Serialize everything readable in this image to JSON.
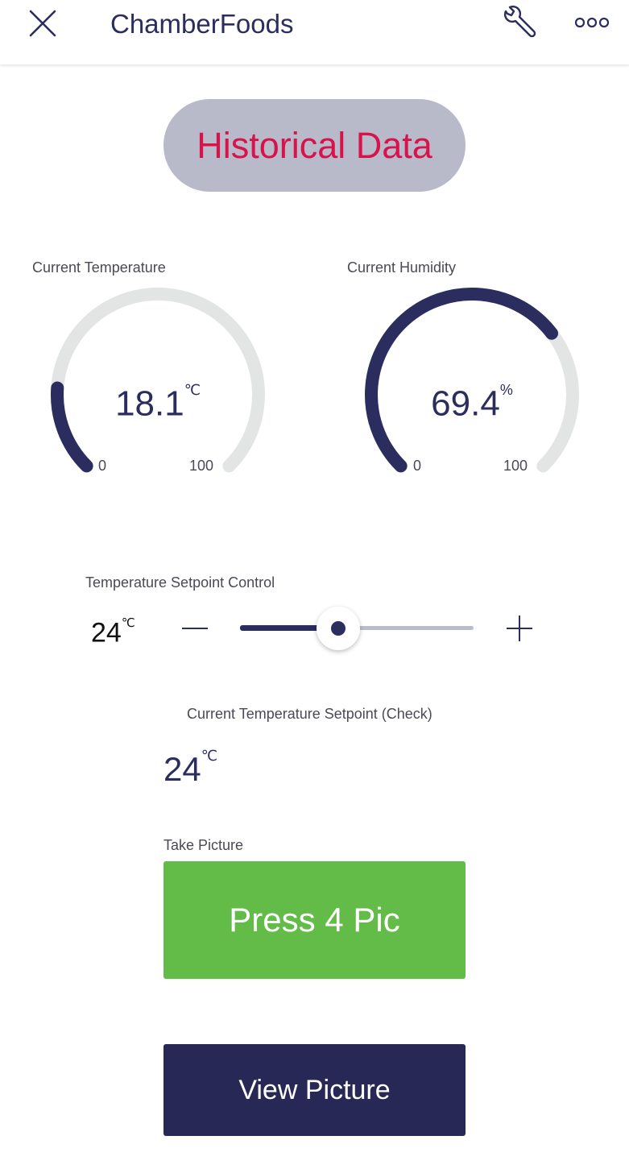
{
  "header": {
    "title": "ChamberFoods",
    "close_icon": "close-icon",
    "wrench_icon": "wrench-icon",
    "more_icon": "more-horizontal-icon"
  },
  "historical": {
    "label": "Historical Data"
  },
  "temperature": {
    "label": "Current Temperature",
    "value": "18.1",
    "unit": "℃",
    "min": "0",
    "max": "100",
    "fraction": 0.181
  },
  "humidity": {
    "label": "Current Humidity",
    "value": "69.4",
    "unit": "%",
    "min": "0",
    "max": "100",
    "fraction": 0.694
  },
  "setpoint": {
    "label": "Temperature Setpoint Control",
    "value": "24",
    "unit": "℃",
    "minus_icon": "minus-icon",
    "plus_icon": "plus-icon",
    "slider_fraction": 0.42
  },
  "check": {
    "label": "Current Temperature Setpoint (Check)",
    "value": "24",
    "unit": "℃"
  },
  "picture": {
    "label": "Take Picture",
    "press_label": "Press 4 Pic",
    "view_label": "View Picture"
  },
  "colors": {
    "accent": "#2b2d5e",
    "gauge_track": "#e3e4e4",
    "historical_text": "#d8124b",
    "historical_bg": "#b8b9c9",
    "press_bg": "#63bb48",
    "view_bg": "#272856"
  }
}
